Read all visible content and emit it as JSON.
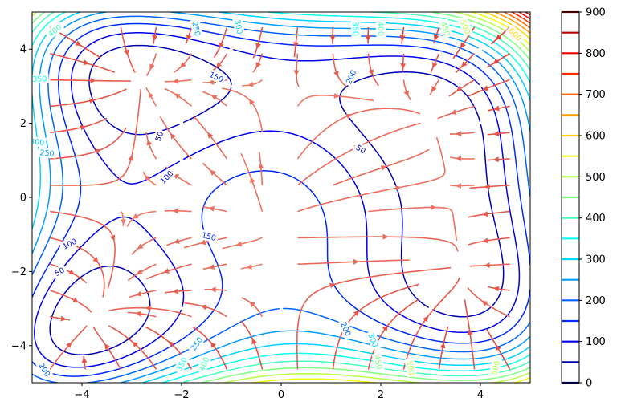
{
  "chart_data": {
    "type": "contour",
    "title": "",
    "xlabel": "",
    "ylabel": "",
    "xlim": [
      -5,
      5
    ],
    "ylim": [
      -5,
      5
    ],
    "xticks": [
      -4,
      -2,
      0,
      2,
      4
    ],
    "yticks": [
      -4,
      -2,
      0,
      2,
      4
    ],
    "xtick_labels": [
      "−4",
      "−2",
      "0",
      "2",
      "4"
    ],
    "ytick_labels": [
      "−4",
      "−2",
      "0",
      "2",
      "4"
    ],
    "colormap": "jet",
    "contour_levels": [
      0,
      50,
      100,
      150,
      200,
      250,
      300,
      350,
      400,
      450,
      500,
      550,
      600,
      650,
      700,
      750,
      800,
      850,
      900
    ],
    "colorbar_ticks": [
      0,
      100,
      200,
      300,
      400,
      500,
      600,
      700,
      800,
      900
    ],
    "colorbar_tick_labels": [
      "0",
      "100",
      "200",
      "300",
      "400",
      "500",
      "600",
      "700",
      "800",
      "900"
    ],
    "contour_labels": [
      {
        "text": "50",
        "x": -2.45,
        "y": 1.65,
        "level": 50
      },
      {
        "text": "50",
        "x": 1.6,
        "y": 1.3,
        "level": 50
      },
      {
        "text": "50",
        "x": -4.45,
        "y": -2.0,
        "level": 50
      },
      {
        "text": "100",
        "x": -2.3,
        "y": 0.55,
        "level": 100
      },
      {
        "text": "100",
        "x": -4.25,
        "y": -1.25,
        "level": 100
      },
      {
        "text": "150",
        "x": -1.3,
        "y": 3.25,
        "level": 150
      },
      {
        "text": "150",
        "x": -1.45,
        "y": -1.05,
        "level": 150
      },
      {
        "text": "200",
        "x": 1.4,
        "y": 3.25,
        "level": 200
      },
      {
        "text": "200",
        "x": 1.3,
        "y": -3.55,
        "level": 200
      },
      {
        "text": "200",
        "x": -4.75,
        "y": -4.65,
        "level": 200
      },
      {
        "text": "250",
        "x": -1.7,
        "y": 4.55,
        "level": 250
      },
      {
        "text": "250",
        "x": -1.7,
        "y": -3.95,
        "level": 250
      },
      {
        "text": "250",
        "x": -4.7,
        "y": 1.2,
        "level": 250
      },
      {
        "text": "300",
        "x": -0.85,
        "y": 4.6,
        "level": 300
      },
      {
        "text": "300",
        "x": 1.85,
        "y": -3.85,
        "level": 300
      },
      {
        "text": "300",
        "x": -4.9,
        "y": 1.5,
        "level": 300
      },
      {
        "text": "350",
        "x": 1.5,
        "y": 4.55,
        "level": 350
      },
      {
        "text": "350",
        "x": -2.0,
        "y": -4.5,
        "level": 350
      },
      {
        "text": "350",
        "x": -4.85,
        "y": 3.2,
        "level": 350
      },
      {
        "text": "400",
        "x": -4.55,
        "y": 4.5,
        "level": 400
      },
      {
        "text": "400",
        "x": -1.55,
        "y": -4.5,
        "level": 400
      },
      {
        "text": "400",
        "x": 2.0,
        "y": 4.55,
        "level": 400
      },
      {
        "text": "450",
        "x": 1.95,
        "y": -4.45,
        "level": 450
      },
      {
        "text": "450",
        "x": 3.3,
        "y": 4.55,
        "level": 450
      },
      {
        "text": "500",
        "x": 2.6,
        "y": -4.6,
        "level": 500
      },
      {
        "text": "500",
        "x": 4.3,
        "y": -4.6,
        "level": 500
      },
      {
        "text": "500",
        "x": 3.7,
        "y": 4.6,
        "level": 500
      },
      {
        "text": "600",
        "x": 4.7,
        "y": 4.4,
        "level": 600
      }
    ],
    "streamplot": true,
    "colorbar": true,
    "grid": false,
    "legend": "none"
  }
}
